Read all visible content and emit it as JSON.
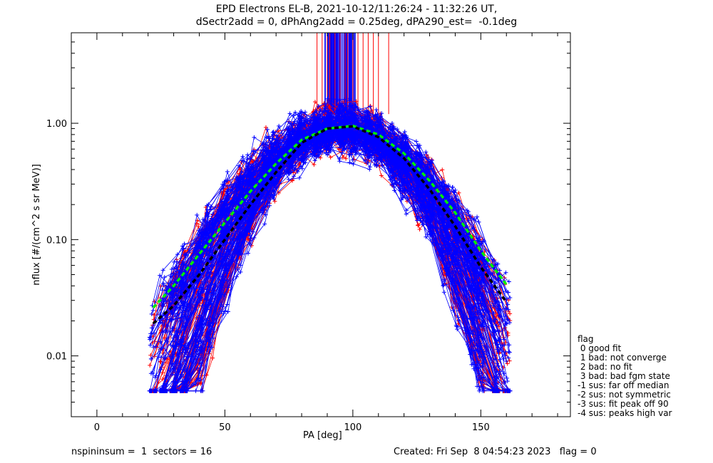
{
  "title_line1": "EPD Electrons EL-B, 2021-10-12/11:26:24 - 11:32:26 UT,",
  "title_line2": "dSectr2add = 0, dPhAng2add = 0.25deg, dPA290_est=  -0.1deg",
  "footer_left": "nspininsum =  1  sectors = 16",
  "footer_right": "Created: Fri Sep  8 04:54:23 2023   flag = 0",
  "legend": {
    "title": "flag",
    "entries": [
      " 0 good fit",
      " 1 bad: not converge",
      " 2 bad: no fit",
      " 3 bad: bad fgm state",
      "-1 sus: far off median",
      "-2 sus: not symmetric",
      "-3 sus: fit peak off 90",
      "-4 sus: peaks high var"
    ]
  },
  "colors": {
    "blue": "#0000ff",
    "red": "#ff0000",
    "green": "#00ee00",
    "black": "#000000"
  },
  "chart_data": {
    "type": "line",
    "title": "EPD Electrons EL-B, 2021-10-12/11:26:24 - 11:32:26 UT, dSectr2add = 0, dPhAng2add = 0.25deg, dPA290_est=  -0.1deg",
    "xlabel": "PA [deg]",
    "ylabel": "nflux [#/(cm^2 s sr MeV)]",
    "xlim": [
      -10,
      185
    ],
    "ylim": [
      0.003,
      6
    ],
    "yscale": "log",
    "x_ticks": [
      0,
      50,
      100,
      150
    ],
    "y_ticks": [
      0.01,
      0.1,
      1.0
    ],
    "y_tick_labels": [
      "0.01",
      "0.10",
      "1.00"
    ],
    "grid": false,
    "series": [
      {
        "color": "green",
        "style": "dashed",
        "x": [
          22,
          30,
          40,
          50,
          60,
          70,
          80,
          90,
          100,
          110,
          120,
          130,
          140,
          150,
          160
        ],
        "y": [
          0.026,
          0.04,
          0.075,
          0.14,
          0.26,
          0.45,
          0.72,
          0.9,
          0.95,
          0.8,
          0.55,
          0.32,
          0.17,
          0.08,
          0.041
        ]
      },
      {
        "color": "black",
        "style": "dashed",
        "x": [
          22,
          30,
          40,
          50,
          60,
          70,
          80,
          90,
          100,
          110,
          120,
          130,
          140,
          150,
          160
        ],
        "y": [
          0.019,
          0.027,
          0.05,
          0.1,
          0.2,
          0.38,
          0.68,
          0.9,
          0.94,
          0.76,
          0.5,
          0.27,
          0.13,
          0.058,
          0.029
        ]
      }
    ],
    "lines_color_blue": "#0000ff",
    "lines_color_red": "#ff0000",
    "vertical_lines_red_x": [
      86,
      88,
      90,
      91,
      93,
      95,
      97,
      98,
      100,
      102,
      104,
      106,
      108,
      110,
      114
    ],
    "vertical_lines_blue_x_range": [
      89,
      101
    ],
    "vertical_lines_y_range": [
      1.2,
      6
    ]
  }
}
